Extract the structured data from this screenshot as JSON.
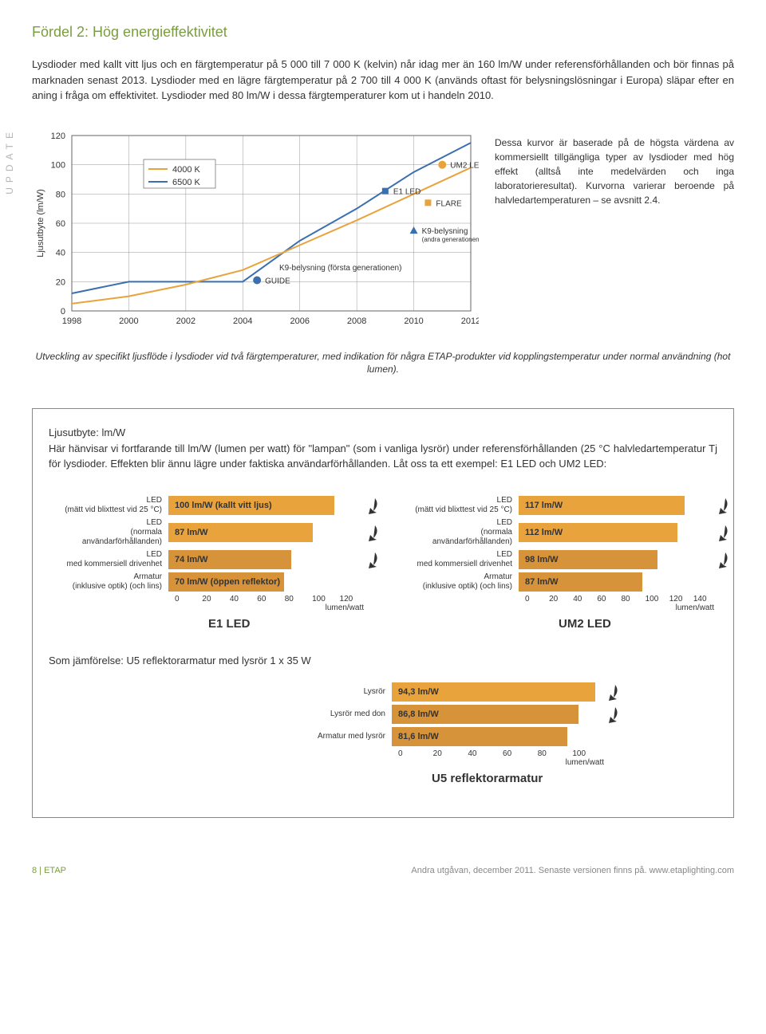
{
  "title": "Fördel 2: Hög energieffektivitet",
  "intro": "Lysdioder med kallt vitt ljus och en färgtemperatur på 5 000 till 7 000 K (kelvin) når idag mer än 160 lm/W under referensförhållanden och bör finnas på marknaden senast 2013. Lysdioder med en lägre färgtemperatur på 2 700 till 4 000 K (används oftast för belysningslösningar i Europa) släpar efter en aning i fråga om effektivitet. Lysdioder med 80 lm/W i dessa färgtemperaturer kom ut i handeln 2010.",
  "side_label": "UPDATE",
  "line_chart": {
    "ylabel": "Ljusutbyte (lm/W)",
    "yticks": [
      0,
      20,
      40,
      60,
      80,
      100,
      120
    ],
    "xticks": [
      1998,
      2000,
      2002,
      2004,
      2006,
      2008,
      2010,
      2012
    ],
    "legend": [
      {
        "label": "4000 K",
        "color": "#e8a33d"
      },
      {
        "label": "6500 K",
        "color": "#3a6fb0"
      }
    ],
    "series_4000": [
      {
        "x": 1998,
        "y": 5
      },
      {
        "x": 2000,
        "y": 10
      },
      {
        "x": 2002,
        "y": 18
      },
      {
        "x": 2004,
        "y": 28
      },
      {
        "x": 2006,
        "y": 45
      },
      {
        "x": 2008,
        "y": 62
      },
      {
        "x": 2010,
        "y": 80
      },
      {
        "x": 2012,
        "y": 98
      }
    ],
    "series_6500": [
      {
        "x": 1998,
        "y": 12
      },
      {
        "x": 2000,
        "y": 20
      },
      {
        "x": 2002,
        "y": 20
      },
      {
        "x": 2004,
        "y": 20
      },
      {
        "x": 2006,
        "y": 48
      },
      {
        "x": 2008,
        "y": 70
      },
      {
        "x": 2010,
        "y": 95
      },
      {
        "x": 2012,
        "y": 115
      }
    ],
    "annotations": [
      {
        "label": "GUIDE",
        "x": 2004.5,
        "y": 21,
        "shape": "circle",
        "color": "#3a6fb0"
      },
      {
        "label": "K9-belysning (första generationen)",
        "x": 2005,
        "y": 30,
        "shape": "none",
        "color": "#3a6fb0"
      },
      {
        "label": "E1 LED",
        "x": 2009,
        "y": 82,
        "shape": "square",
        "color": "#3a6fb0"
      },
      {
        "label": "FLARE",
        "x": 2010.5,
        "y": 74,
        "shape": "square",
        "color": "#e8a33d"
      },
      {
        "label": "K9-belysning",
        "sub": "(andra generationen)",
        "x": 2010,
        "y": 55,
        "shape": "triangle",
        "color": "#3a6fb0"
      },
      {
        "label": "UM2 LED",
        "x": 2011,
        "y": 100,
        "shape": "circle",
        "color": "#e8a33d"
      }
    ]
  },
  "chart_desc": "Dessa kurvor är baserade på de högsta värdena av kommersiellt tillgängliga typer av lysdioder med hög effekt (alltså inte medelvärden och inga laboratorieresultat). Kurvorna varierar beroende på halvledartemperaturen – se avsnitt 2.4.",
  "caption": "Utveckling av specifikt ljusflöde i lysdioder vid två färgtemperaturer, med indikation för några ETAP-produkter vid kopplingstemperatur under normal användning (hot lumen).",
  "box_intro_label": "Ljusutbyte: lm/W",
  "box_intro": "Här hänvisar vi fortfarande till lm/W (lumen per watt) för \"lampan\" (som i vanliga lysrör) under referensförhållanden (25 °C halvledartemperatur Tj för lysdioder. Effekten blir ännu lägre under faktiska användarförhållanden. Låt oss ta ett exempel: E1 LED och UM2 LED:",
  "bar_labels": [
    "LED\n(mätt vid blixttest vid 25 °C)",
    "LED\n(normala användarförhållanden)",
    "LED\nmed kommersiell drivenhet",
    "Armatur\n(inklusive optik) (och lins)"
  ],
  "e1": {
    "name": "E1 LED",
    "max": 120,
    "ticks": [
      0,
      20,
      40,
      60,
      80,
      100,
      120
    ],
    "axis_label": "lumen/watt",
    "bars": [
      {
        "value": 100,
        "label": "100 lm/W (kallt vitt ljus)",
        "color": "#e8a33d"
      },
      {
        "value": 87,
        "label": "87 lm/W",
        "color": "#e8a33d"
      },
      {
        "value": 74,
        "label": "74 lm/W",
        "color": "#d6933a"
      },
      {
        "value": 70,
        "label": "70 lm/W (öppen reflektor)",
        "color": "#d6933a"
      }
    ]
  },
  "um2": {
    "name": "UM2 LED",
    "max": 140,
    "ticks": [
      0,
      20,
      40,
      60,
      80,
      100,
      120,
      140
    ],
    "axis_label": "lumen/watt",
    "bars": [
      {
        "value": 117,
        "label": "117 lm/W",
        "color": "#e8a33d"
      },
      {
        "value": 112,
        "label": "112 lm/W",
        "color": "#e8a33d"
      },
      {
        "value": 98,
        "label": "98 lm/W",
        "color": "#d6933a"
      },
      {
        "value": 87,
        "label": "87 lm/W",
        "color": "#d6933a"
      }
    ]
  },
  "compare": "Som jämförelse: U5 reflektorarmatur med lysrör 1 x 35 W",
  "u5": {
    "name": "U5 reflektorarmatur",
    "max": 100,
    "ticks": [
      0,
      20,
      40,
      60,
      80,
      100
    ],
    "axis_label": "lumen/watt",
    "rows": [
      "Lysrör",
      "Lysrör med don",
      "Armatur med lysrör"
    ],
    "bars": [
      {
        "value": 94.3,
        "label": "94,3 lm/W",
        "color": "#e8a33d"
      },
      {
        "value": 86.8,
        "label": "86,8 lm/W",
        "color": "#d6933a"
      },
      {
        "value": 81.6,
        "label": "81,6 lm/W",
        "color": "#d6933a"
      }
    ]
  },
  "footer": {
    "left": "8 | ETAP",
    "right": "Andra utgåvan, december 2011. Senaste versionen finns på. www.etaplighting.com"
  }
}
